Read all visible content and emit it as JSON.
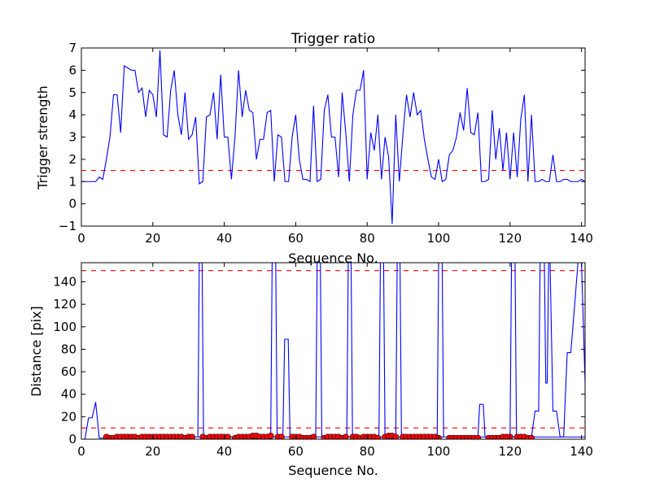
{
  "chart_data": [
    {
      "type": "line",
      "title": "Trigger ratio",
      "xlabel": "Sequence No.",
      "ylabel": "Trigger strength",
      "xlim": [
        0,
        141
      ],
      "ylim": [
        -1,
        7
      ],
      "xticks": [
        "0",
        "20",
        "40",
        "60",
        "80",
        "100",
        "120",
        "140"
      ],
      "yticks": [
        "−1",
        "0",
        "1",
        "2",
        "3",
        "4",
        "5",
        "6",
        "7"
      ],
      "series": [
        {
          "color": "#0000ff",
          "style": "solid",
          "x": [
            0,
            1,
            2,
            3,
            4,
            5,
            6,
            7,
            8,
            9,
            10,
            11,
            12,
            13,
            14,
            15,
            16,
            17,
            18,
            19,
            20,
            21,
            22,
            23,
            24,
            25,
            26,
            27,
            28,
            29,
            30,
            31,
            32,
            33,
            34,
            35,
            36,
            37,
            38,
            39,
            40,
            41,
            42,
            43,
            44,
            45,
            46,
            47,
            48,
            49,
            50,
            51,
            52,
            53,
            54,
            55,
            56,
            57,
            58,
            59,
            60,
            61,
            62,
            63,
            64,
            65,
            66,
            67,
            68,
            69,
            70,
            71,
            72,
            73,
            74,
            75,
            76,
            77,
            78,
            79,
            80,
            81,
            82,
            83,
            84,
            85,
            86,
            87,
            88,
            89,
            90,
            91,
            92,
            93,
            94,
            95,
            96,
            97,
            98,
            99,
            100,
            101,
            102,
            103,
            104,
            105,
            106,
            107,
            108,
            109,
            110,
            111,
            112,
            113,
            114,
            115,
            116,
            117,
            118,
            119,
            120,
            121,
            122,
            123,
            124,
            125,
            126,
            127,
            128,
            129,
            130,
            131,
            132,
            133,
            134,
            135,
            136,
            137,
            138,
            139,
            140,
            141
          ],
          "y": [
            1.0,
            1.0,
            1.0,
            1.0,
            1.0,
            1.2,
            1.1,
            2.0,
            3.0,
            4.9,
            4.9,
            3.2,
            6.2,
            6.1,
            6.0,
            6.0,
            5.0,
            5.2,
            3.9,
            5.1,
            4.9,
            3.9,
            6.9,
            3.1,
            3.0,
            5.1,
            6.0,
            4.0,
            3.1,
            5.0,
            2.9,
            3.1,
            3.9,
            0.9,
            1.0,
            3.9,
            4.0,
            5.0,
            2.9,
            5.8,
            3.0,
            3.0,
            1.1,
            3.0,
            6.0,
            3.9,
            5.1,
            4.2,
            4.1,
            2.0,
            2.9,
            2.9,
            4.1,
            4.2,
            1.0,
            3.1,
            3.0,
            1.0,
            1.0,
            3.0,
            4.0,
            2.0,
            1.1,
            1.1,
            1.0,
            4.4,
            1.0,
            1.1,
            4.2,
            4.9,
            3.0,
            3.0,
            1.2,
            5.0,
            3.2,
            1.0,
            4.0,
            5.1,
            5.1,
            6.0,
            1.1,
            3.2,
            2.4,
            4.0,
            1.1,
            3.0,
            2.1,
            -0.9,
            4.0,
            1.0,
            3.1,
            4.9,
            3.9,
            5.0,
            4.0,
            4.2,
            2.9,
            2.0,
            1.2,
            1.1,
            2.0,
            1.0,
            1.1,
            2.2,
            2.4,
            3.0,
            4.1,
            3.3,
            5.2,
            3.2,
            3.1,
            4.1,
            1.0,
            1.0,
            1.1,
            4.2,
            2.0,
            3.4,
            1.5,
            3.2,
            1.1,
            3.2,
            1.2,
            3.8,
            4.9,
            1.0,
            4.0,
            1.0,
            1.0,
            1.1,
            1.0,
            1.0,
            2.2,
            1.0,
            1.0,
            1.1,
            1.1,
            1.0,
            1.0,
            1.0,
            1.1,
            1.0
          ]
        }
      ],
      "hlines": [
        {
          "y": 1.5,
          "color": "#ff0000",
          "style": "dashed"
        }
      ],
      "grid": false
    },
    {
      "type": "line",
      "title": "",
      "xlabel": "Sequence No.",
      "ylabel": "Distance [pix]",
      "xlim": [
        0,
        141
      ],
      "ylim": [
        0,
        157
      ],
      "xticks": [
        "0",
        "20",
        "40",
        "60",
        "80",
        "100",
        "120",
        "140"
      ],
      "yticks": [
        "0",
        "20",
        "40",
        "60",
        "80",
        "100",
        "120",
        "140"
      ],
      "series": [
        {
          "color": "#0000ff",
          "style": "solid",
          "x": [
            0,
            1,
            2,
            3,
            4,
            5,
            6,
            7,
            8,
            9,
            10,
            11,
            12,
            13,
            14,
            15,
            16,
            17,
            18,
            19,
            20,
            21,
            22,
            23,
            24,
            25,
            26,
            27,
            28,
            29,
            30,
            31,
            32,
            33,
            34,
            35,
            36,
            37,
            38,
            39,
            40,
            41,
            42,
            43,
            44,
            45,
            46,
            47,
            48,
            49,
            50,
            51,
            52,
            53,
            54,
            55,
            56,
            57,
            58,
            59,
            60,
            61,
            62,
            63,
            64,
            65,
            66,
            67,
            68,
            69,
            70,
            71,
            72,
            73,
            74,
            75,
            76,
            77,
            78,
            79,
            80,
            81,
            82,
            83,
            84,
            85,
            86,
            87,
            88,
            89,
            90,
            91,
            92,
            93,
            94,
            95,
            96,
            97,
            98,
            99,
            100,
            101,
            102,
            103,
            104,
            105,
            106,
            107,
            108,
            109,
            110,
            111,
            112,
            113,
            114,
            115,
            116,
            117,
            118,
            119,
            120,
            121,
            122,
            123,
            124,
            125,
            126,
            127,
            128,
            129,
            130,
            131,
            132,
            133,
            134,
            135,
            136,
            137,
            138,
            139,
            140,
            141
          ],
          "y": [
            0,
            0,
            19,
            19,
            33,
            1,
            1,
            1,
            2,
            2,
            2,
            2,
            2,
            2,
            2,
            2,
            1,
            2,
            2,
            2,
            2,
            2,
            2,
            2,
            2,
            2,
            2,
            2,
            2,
            2,
            2,
            2,
            2,
            2,
            2,
            2,
            2,
            2,
            2,
            2,
            2,
            2,
            2,
            1,
            2,
            2,
            2,
            2,
            2,
            2,
            2,
            2,
            2,
            2,
            2,
            2,
            2,
            2,
            2,
            2,
            2,
            2,
            2,
            2,
            2,
            2,
            2,
            2,
            2,
            2,
            2,
            2,
            2,
            2,
            2,
            2,
            2,
            2,
            2,
            2,
            2,
            2,
            2,
            2,
            2,
            2,
            2,
            2,
            2,
            2,
            2,
            2,
            2,
            2,
            2,
            2,
            2,
            2,
            2,
            2,
            2,
            2,
            2,
            2,
            2,
            2,
            2,
            2,
            2,
            2,
            2,
            2,
            2,
            2,
            2,
            2,
            2,
            2,
            2,
            2,
            2,
            2,
            2,
            2,
            2,
            2,
            2,
            2,
            2,
            2,
            2,
            2,
            2,
            2,
            2,
            2,
            2,
            2,
            2,
            2,
            2,
            2
          ],
          "spikes": [
            {
              "x": [
                32.6,
                33,
                33.8,
                34.2
              ],
              "y": [
                2,
                157,
                157,
                2
              ]
            },
            {
              "x": [
                53,
                53.4,
                54.4,
                54.8
              ],
              "y": [
                2,
                157,
                157,
                2
              ]
            },
            {
              "x": [
                56.4,
                56.9,
                57.9,
                58.4
              ],
              "y": [
                2,
                89,
                89,
                2
              ]
            },
            {
              "x": [
                65.6,
                66,
                66.9,
                67.3
              ],
              "y": [
                2,
                157,
                157,
                2
              ]
            },
            {
              "x": [
                74.3,
                74.7,
                75.5,
                75.9
              ],
              "y": [
                2,
                157,
                157,
                2
              ]
            },
            {
              "x": [
                83.3,
                83.7,
                84.6,
                85
              ],
              "y": [
                2,
                157,
                157,
                2
              ]
            },
            {
              "x": [
                88,
                88.4,
                89.2,
                89.6
              ],
              "y": [
                2,
                157,
                157,
                2
              ]
            },
            {
              "x": [
                99.6,
                100,
                101,
                101.4
              ],
              "y": [
                2,
                157,
                157,
                2
              ]
            },
            {
              "x": [
                111,
                111.5,
                112.5,
                113
              ],
              "y": [
                2,
                31,
                31,
                2
              ]
            },
            {
              "x": [
                120,
                120.4,
                121.4,
                121.8
              ],
              "y": [
                2,
                157,
                157,
                2
              ]
            },
            {
              "x": [
                126,
                127,
                128,
                128.4,
                129.6,
                130,
                130.4,
                130.8,
                131.2,
                132,
                133,
                134,
                135,
                136,
                137,
                138,
                139,
                140,
                141
              ],
              "y": [
                2,
                25,
                25,
                157,
                157,
                50,
                50,
                157,
                157,
                25,
                25,
                2,
                2,
                77,
                77,
                116,
                157,
                157,
                50
              ]
            }
          ]
        },
        {
          "color": "#ff0000",
          "style": "markers",
          "x": [
            7,
            8,
            9,
            10,
            11,
            12,
            13,
            14,
            15,
            16,
            17,
            18,
            19,
            20,
            21,
            22,
            23,
            24,
            25,
            26,
            27,
            28,
            29,
            30,
            31,
            34,
            35,
            36,
            37,
            38,
            39,
            40,
            41,
            43,
            44,
            45,
            46,
            47,
            48,
            49,
            50,
            51,
            52,
            53,
            55,
            56,
            59,
            60,
            61,
            62,
            63,
            64,
            65,
            68,
            69,
            70,
            71,
            72,
            73,
            74,
            76,
            77,
            78,
            79,
            80,
            81,
            82,
            83,
            85,
            86,
            87,
            88,
            90,
            91,
            92,
            93,
            94,
            95,
            96,
            97,
            98,
            99,
            100,
            103,
            104,
            105,
            106,
            107,
            108,
            109,
            110,
            111,
            114,
            115,
            116,
            117,
            118,
            119,
            120,
            122,
            123,
            124,
            125,
            126
          ],
          "y": [
            2,
            1,
            1,
            2,
            2,
            2,
            2,
            2,
            2,
            1,
            2,
            2,
            2,
            2,
            2,
            2,
            2,
            2,
            2,
            2,
            2,
            2,
            1,
            2,
            2,
            2,
            1,
            2,
            2,
            2,
            2,
            2,
            2,
            1,
            2,
            2,
            2,
            2,
            3,
            3,
            2,
            2,
            2,
            3,
            2,
            2,
            2,
            2,
            2,
            1,
            1,
            1,
            2,
            1,
            2,
            2,
            2,
            2,
            1,
            2,
            2,
            2,
            1,
            2,
            2,
            2,
            2,
            1,
            2,
            3,
            3,
            2,
            2,
            2,
            2,
            2,
            2,
            2,
            2,
            2,
            2,
            2,
            1,
            1,
            1,
            1,
            1,
            1,
            1,
            1,
            1,
            1,
            1,
            1,
            1,
            1,
            2,
            2,
            2,
            2,
            2,
            2,
            1,
            1
          ]
        }
      ],
      "hlines": [
        {
          "y": 150,
          "color": "#ff0000",
          "style": "dashed"
        },
        {
          "y": 10,
          "color": "#ff0000",
          "style": "dashed"
        }
      ],
      "grid": false
    }
  ]
}
